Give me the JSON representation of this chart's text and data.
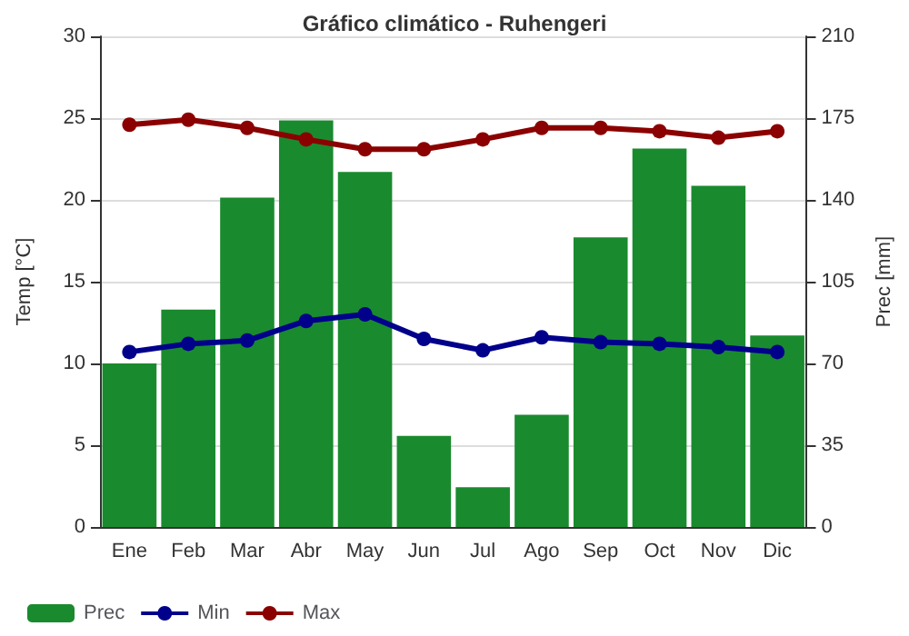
{
  "chart_data": {
    "type": "line",
    "title": "Gráfico climático - Ruhengeri",
    "ylabel": "Temp [°C]",
    "y2label": "Prec [mm]",
    "categories": [
      "Ene",
      "Feb",
      "Mar",
      "Abr",
      "May",
      "Jun",
      "Jul",
      "Ago",
      "Sep",
      "Oct",
      "Nov",
      "Dic"
    ],
    "series": [
      {
        "name": "Prec",
        "type": "bar",
        "axis": "y2",
        "color": "#1a8a2e",
        "values": [
          70,
          93,
          141,
          174,
          152,
          39,
          17,
          48,
          124,
          162,
          146,
          82
        ]
      },
      {
        "name": "Min",
        "color": "#00008b",
        "values": [
          10.7,
          11.2,
          11.4,
          12.6,
          13.0,
          11.5,
          10.8,
          11.6,
          11.3,
          11.2,
          11.0,
          10.7
        ]
      },
      {
        "name": "Max",
        "color": "#8b0000",
        "values": [
          24.6,
          24.9,
          24.4,
          23.7,
          23.1,
          23.1,
          23.7,
          24.4,
          24.4,
          24.2,
          23.8,
          24.2
        ]
      }
    ],
    "ylim": [
      0,
      30
    ],
    "yticks": [
      0,
      5,
      10,
      15,
      20,
      25,
      30
    ],
    "y2lim": [
      0,
      210
    ],
    "y2ticks": [
      0,
      35,
      70,
      105,
      140,
      175,
      210
    ],
    "grid": true,
    "legend": "bottom",
    "marker": "circle"
  }
}
